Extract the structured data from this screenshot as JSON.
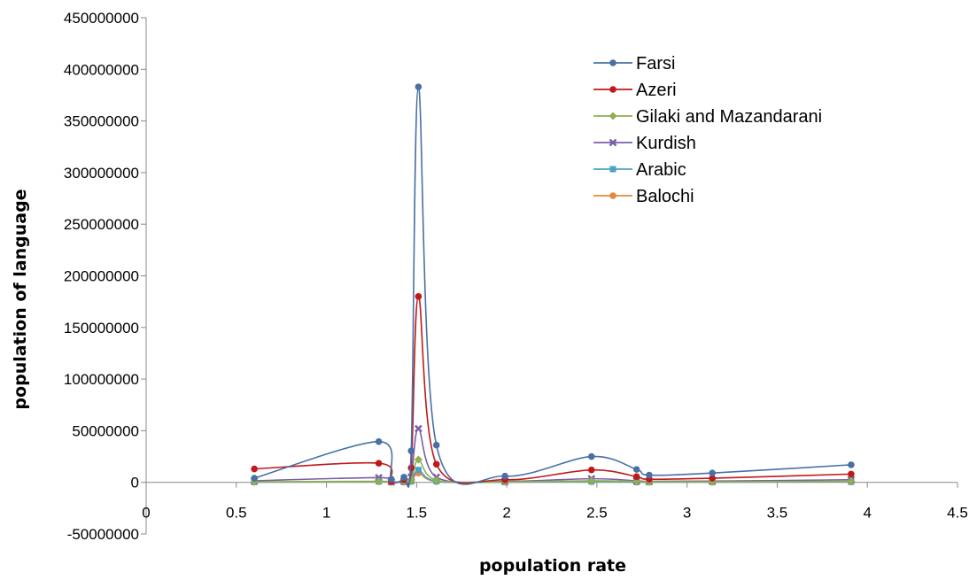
{
  "chart_data": {
    "type": "line",
    "title": "",
    "xlabel": "population rate",
    "ylabel": "population of language",
    "xlim": [
      0,
      4.5
    ],
    "ylim": [
      -50000000,
      450000000
    ],
    "x_ticks": [
      "0",
      "0.5",
      "1",
      "1.5",
      "2",
      "2.5",
      "3",
      "3.5",
      "4",
      "4.5"
    ],
    "y_ticks": [
      "-50000000",
      "0",
      "50000000",
      "100000000",
      "150000000",
      "200000000",
      "250000000",
      "300000000",
      "350000000",
      "400000000",
      "450000000"
    ],
    "grid": false,
    "legend_position": "top-right",
    "series": [
      {
        "name": "Farsi",
        "color": "#4a6fa5",
        "marker": "circle",
        "points": [
          [
            0.6,
            4000000
          ],
          [
            1.29,
            39500000
          ],
          [
            1.36,
            3000000
          ],
          [
            1.43,
            5000000
          ],
          [
            1.47,
            30500000
          ],
          [
            1.51,
            383000000
          ],
          [
            1.61,
            36000000
          ],
          [
            1.99,
            6000000
          ],
          [
            2.47,
            25000000
          ],
          [
            2.72,
            12500000
          ],
          [
            2.79,
            7000000
          ],
          [
            3.14,
            9000000
          ],
          [
            3.91,
            17000000
          ]
        ]
      },
      {
        "name": "Azeri",
        "color": "#c0191a",
        "marker": "circle",
        "points": [
          [
            0.6,
            13000000
          ],
          [
            1.29,
            18500000
          ],
          [
            1.36,
            1000000
          ],
          [
            1.43,
            2500000
          ],
          [
            1.47,
            14000000
          ],
          [
            1.51,
            180000000
          ],
          [
            1.61,
            17500000
          ],
          [
            1.99,
            2500000
          ],
          [
            2.47,
            12000000
          ],
          [
            2.72,
            5500000
          ],
          [
            2.79,
            3000000
          ],
          [
            3.14,
            4000000
          ],
          [
            3.91,
            8000000
          ]
        ]
      },
      {
        "name": "Gilaki and Mazandarani",
        "color": "#8db050",
        "marker": "diamond",
        "points": [
          [
            0.6,
            500000
          ],
          [
            1.29,
            1000000
          ],
          [
            1.36,
            200000
          ],
          [
            1.43,
            500000
          ],
          [
            1.47,
            2000000
          ],
          [
            1.51,
            22000000
          ],
          [
            1.61,
            2000000
          ],
          [
            1.99,
            500000
          ],
          [
            2.47,
            1500000
          ],
          [
            2.72,
            700000
          ],
          [
            2.79,
            400000
          ],
          [
            3.14,
            500000
          ],
          [
            3.91,
            1000000
          ]
        ]
      },
      {
        "name": "Kurdish",
        "color": "#7b5ea7",
        "marker": "x",
        "points": [
          [
            0.6,
            1500000
          ],
          [
            1.29,
            4500000
          ],
          [
            1.36,
            500000
          ],
          [
            1.43,
            1000000
          ],
          [
            1.47,
            5000000
          ],
          [
            1.51,
            52000000
          ],
          [
            1.61,
            5000000
          ],
          [
            1.99,
            1000000
          ],
          [
            2.47,
            3500000
          ],
          [
            2.72,
            1500000
          ],
          [
            2.79,
            1000000
          ],
          [
            3.14,
            1200000
          ],
          [
            3.91,
            2500000
          ]
        ]
      },
      {
        "name": "Arabic",
        "color": "#4aa3c0",
        "marker": "square",
        "points": [
          [
            0.6,
            300000
          ],
          [
            1.29,
            800000
          ],
          [
            1.36,
            100000
          ],
          [
            1.43,
            300000
          ],
          [
            1.47,
            1000000
          ],
          [
            1.51,
            12000000
          ],
          [
            1.61,
            1000000
          ],
          [
            1.99,
            200000
          ],
          [
            2.47,
            800000
          ],
          [
            2.72,
            300000
          ],
          [
            2.79,
            200000
          ],
          [
            3.14,
            300000
          ],
          [
            3.91,
            500000
          ]
        ]
      },
      {
        "name": "Balochi",
        "color": "#e08a3c",
        "marker": "circle",
        "points": [
          [
            0.6,
            200000
          ],
          [
            1.29,
            600000
          ],
          [
            1.36,
            100000
          ],
          [
            1.43,
            200000
          ],
          [
            1.47,
            800000
          ],
          [
            1.51,
            9000000
          ],
          [
            1.61,
            800000
          ],
          [
            1.99,
            200000
          ],
          [
            2.47,
            600000
          ],
          [
            2.72,
            200000
          ],
          [
            2.79,
            100000
          ],
          [
            3.14,
            200000
          ],
          [
            3.91,
            400000
          ]
        ]
      }
    ]
  }
}
